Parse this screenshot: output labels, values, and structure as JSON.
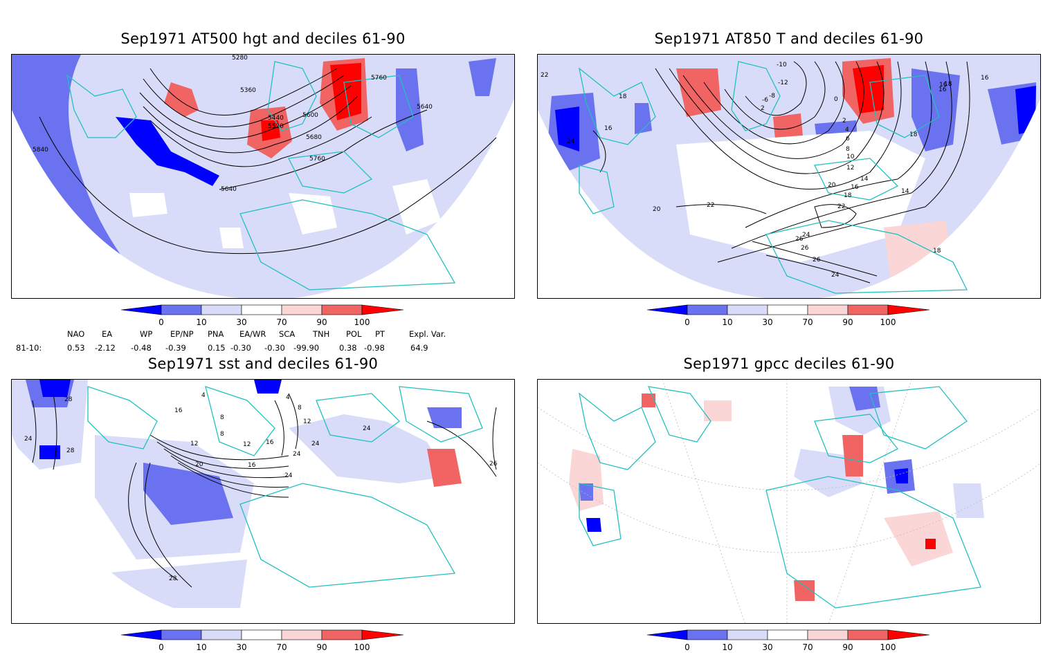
{
  "panels": [
    {
      "title": "Sep1971 AT500 hgt and deciles 61-90",
      "contour_labels": [
        "5280",
        "5360",
        "5440",
        "5520",
        "5600",
        "5680",
        "5760",
        "5760",
        "5640",
        "5640",
        "5840"
      ]
    },
    {
      "title": "Sep1971 AT850 T and deciles 61-90",
      "contour_labels": [
        "-10",
        "-12",
        "-8",
        "-6",
        "2",
        "0",
        "2",
        "4",
        "6",
        "8",
        "10",
        "12",
        "14",
        "16",
        "18",
        "20",
        "22",
        "24",
        "26",
        "26",
        "26",
        "24",
        "22",
        "20",
        "18",
        "16",
        "16",
        "16",
        "18",
        "18",
        "14",
        "18",
        "22",
        "24",
        "16"
      ]
    },
    {
      "title": "Sep1971 sst and deciles 61-90",
      "contour_labels": [
        "28",
        "24",
        "28",
        "16",
        "4",
        "8",
        "12",
        "8",
        "12",
        "16",
        "20",
        "24",
        "16",
        "24",
        "24",
        "28",
        "26",
        "24",
        "8",
        "4",
        "12"
      ]
    },
    {
      "title": "Sep1971 gpcc deciles 61-90",
      "contour_labels": []
    }
  ],
  "colorbar": {
    "labels": [
      "0",
      "10",
      "30",
      "70",
      "90",
      "100"
    ],
    "colors": [
      "#0000ff",
      "#6b72f0",
      "#d9dcf8",
      "#ffffff",
      "#fbd6d6",
      "#f06464",
      "#ff0000"
    ]
  },
  "indices": {
    "headers": [
      "NAO",
      "EA",
      "WP",
      "EP/NP",
      "PNA",
      "EA/WR",
      "SCA",
      "TNH",
      "POL",
      "PT",
      "Expl. Var."
    ],
    "row_label": "81-10:",
    "values": [
      "0.53",
      "-2.12",
      "-0.48",
      "-0.39",
      "0.15",
      "-0.30",
      "-0.30",
      "-99.90",
      "0.38",
      "-0.98",
      "64.9"
    ]
  },
  "colors": {
    "coast": "#20c0c0",
    "strong_neg": "#0000ff",
    "mod_neg": "#6b72f0",
    "weak_neg": "#d9dcf8",
    "weak_pos": "#fbd6d6",
    "mod_pos": "#f06464",
    "strong_pos": "#ff0000"
  }
}
